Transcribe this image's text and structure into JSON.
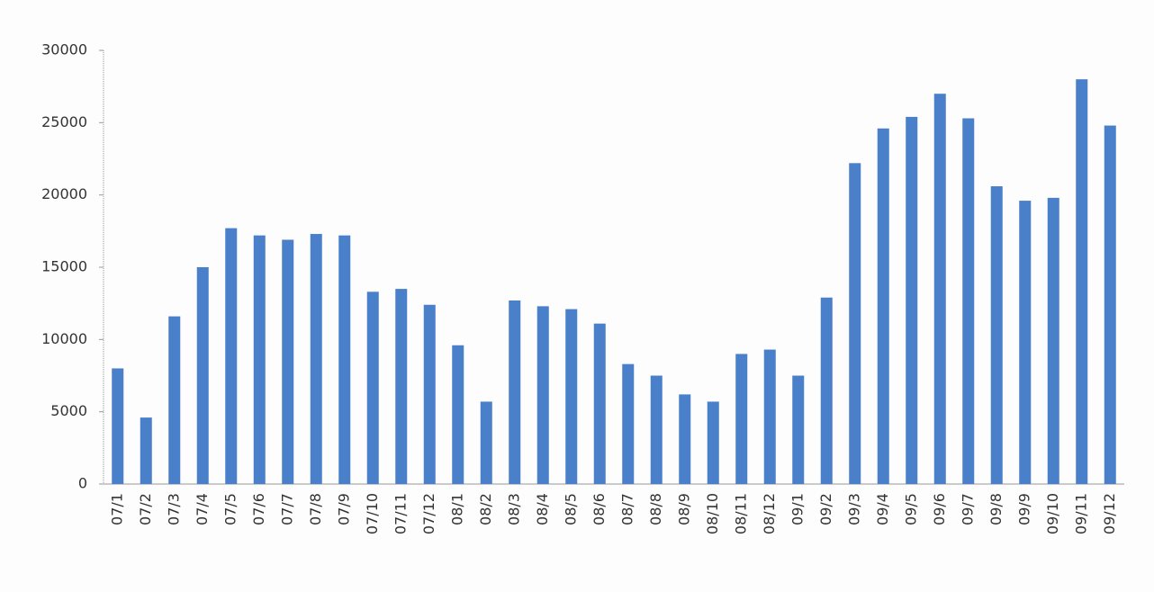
{
  "chart_data": {
    "type": "bar",
    "categories": [
      "07/1",
      "07/2",
      "07/3",
      "07/4",
      "07/5",
      "07/6",
      "07/7",
      "07/8",
      "07/9",
      "07/10",
      "07/11",
      "07/12",
      "08/1",
      "08/2",
      "08/3",
      "08/4",
      "08/5",
      "08/6",
      "08/7",
      "08/8",
      "08/9",
      "08/10",
      "08/11",
      "08/12",
      "09/1",
      "09/2",
      "09/3",
      "09/4",
      "09/5",
      "09/6",
      "09/7",
      "09/8",
      "09/9",
      "09/10",
      "09/11",
      "09/12"
    ],
    "values": [
      8000,
      4600,
      11600,
      15000,
      17700,
      17200,
      16900,
      17300,
      17200,
      13300,
      13500,
      12400,
      9600,
      5700,
      12700,
      12300,
      12100,
      11100,
      8300,
      7500,
      6200,
      5700,
      9000,
      9300,
      7500,
      12900,
      22200,
      24600,
      25400,
      27000,
      25300,
      20600,
      19600,
      19800,
      28000,
      24800
    ],
    "color": "#4a7fc9",
    "ylim": [
      0,
      30000
    ],
    "yticks": [
      0,
      5000,
      10000,
      15000,
      20000,
      25000,
      30000
    ],
    "grid": false
  }
}
